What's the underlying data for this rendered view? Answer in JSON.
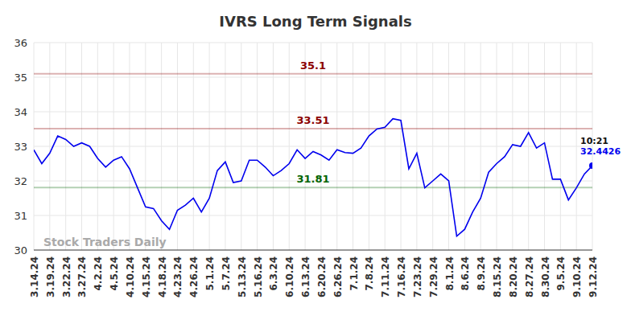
{
  "chart_data": {
    "type": "line",
    "title": "IVRS Long Term Signals",
    "categories": [
      "3.14.24",
      null,
      "3.19.24",
      null,
      "3.22.24",
      null,
      "3.27.24",
      null,
      "4.2.24",
      null,
      "4.5.24",
      null,
      "4.10.24",
      null,
      "4.15.24",
      null,
      "4.18.24",
      null,
      "4.23.24",
      null,
      "4.26.24",
      null,
      "5.1.24",
      null,
      "5.7.24",
      null,
      "5.13.24",
      null,
      "5.16.24",
      null,
      "6.3.24",
      null,
      "6.10.24",
      null,
      "6.13.24",
      null,
      "6.20.24",
      null,
      "6.26.24",
      null,
      "7.1.24",
      null,
      "7.8.24",
      null,
      "7.11.24",
      null,
      "7.16.24",
      null,
      "7.23.24",
      null,
      "7.29.24",
      null,
      "8.1.24",
      null,
      "8.6.24",
      null,
      "8.9.24",
      null,
      "8.15.24",
      null,
      "8.20.24",
      null,
      "8.27.24",
      null,
      "8.30.24",
      null,
      "9.5.24",
      null,
      "9.10.24",
      null,
      "9.12.24"
    ],
    "series": [
      {
        "name": "IVRS",
        "color": "#0000ee",
        "values": [
          32.9,
          32.5,
          32.8,
          33.3,
          33.2,
          33.0,
          33.1,
          33.0,
          32.65,
          32.4,
          32.6,
          32.7,
          32.35,
          31.8,
          31.25,
          31.2,
          30.85,
          30.6,
          31.15,
          31.3,
          31.5,
          31.1,
          31.5,
          32.3,
          32.55,
          31.95,
          32.0,
          32.6,
          32.6,
          32.4,
          32.15,
          32.3,
          32.5,
          32.9,
          32.65,
          32.85,
          32.75,
          32.6,
          32.9,
          32.82,
          32.8,
          32.95,
          33.3,
          33.5,
          33.55,
          33.8,
          33.75,
          32.35,
          32.8,
          31.8,
          32.0,
          32.2,
          32.0,
          30.4,
          30.6,
          31.1,
          31.5,
          32.25,
          32.5,
          32.7,
          33.05,
          33.0,
          33.4,
          32.95,
          33.1,
          32.05,
          32.05,
          31.45,
          31.8,
          32.2,
          32.4426
        ]
      }
    ],
    "ylim": [
      30,
      36
    ],
    "yticks": [
      30,
      31,
      32,
      33,
      34,
      35,
      36
    ],
    "grid": true,
    "reference_lines": [
      {
        "value": 35.1,
        "color": "#8b0000",
        "label": "35.1"
      },
      {
        "value": 33.51,
        "color": "#8b0000",
        "label": "33.51"
      },
      {
        "value": 31.81,
        "color": "#006400",
        "label": "31.81"
      }
    ],
    "last_point_label": "10:21",
    "watermark": "Stock Traders Daily"
  }
}
